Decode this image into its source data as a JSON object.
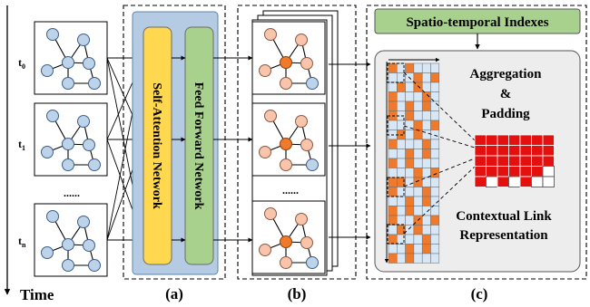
{
  "time_axis": {
    "label": "Time",
    "snapshots": [
      "t",
      "t",
      "t"
    ],
    "subscripts": [
      "0",
      "1",
      "n"
    ],
    "ellipsis": "......"
  },
  "panel_a": {
    "self_attention_label": "Self-Attention Network",
    "feed_forward_label": "Feed Forward Network",
    "caption": "(a)"
  },
  "panel_b": {
    "ellipsis": "......",
    "caption": "(b)"
  },
  "panel_c": {
    "indexes_label": "Spatio-temporal Indexes",
    "aggregation_label": "Aggregation",
    "ampersand": "&",
    "padding_label": "Padding",
    "contextual_line1": "Contextual Link",
    "contextual_line2": "Representation",
    "caption": "(c)"
  },
  "colors": {
    "blue_node": "#bcd3ea",
    "light_orange_node": "#f8c4ab",
    "dark_orange_node": "#ef7a2b",
    "attention_block": "#ffd84f",
    "feed_forward_block": "#a9d18e",
    "panel_a_background": "#b4cbe3",
    "indexes_box": "#a9d18e",
    "context_red": "#e41010"
  }
}
